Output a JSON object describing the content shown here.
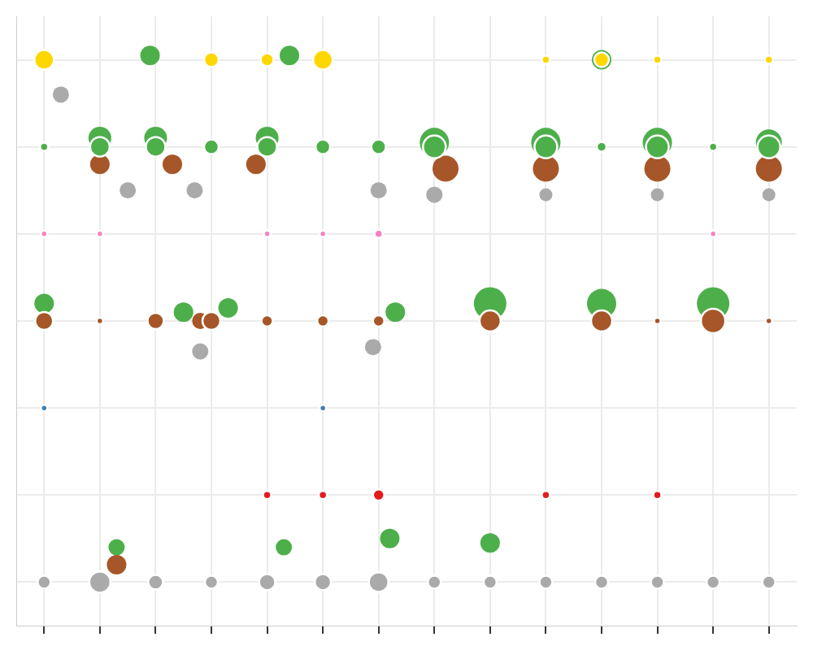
{
  "chart_data": {
    "type": "bubble",
    "xlim": [
      0.5,
      14.5
    ],
    "ylim": [
      0.5,
      7.5
    ],
    "xticks": [
      1,
      2,
      3,
      4,
      5,
      6,
      7,
      8,
      9,
      10,
      11,
      12,
      13,
      14
    ],
    "yticks": [
      1,
      2,
      3,
      4,
      5,
      6,
      7
    ],
    "grid": true,
    "tick_labels": false,
    "series": [
      {
        "color": "#4daf4a",
        "points": [
          {
            "x": 2,
            "y": 6.1,
            "size": 14
          },
          {
            "x": 3,
            "y": 6.1,
            "size": 14
          },
          {
            "x": 5,
            "y": 6.1,
            "size": 14
          },
          {
            "x": 8,
            "y": 6.05,
            "size": 18
          },
          {
            "x": 10,
            "y": 6.05,
            "size": 18
          },
          {
            "x": 12,
            "y": 6.05,
            "size": 18
          },
          {
            "x": 14,
            "y": 6.05,
            "size": 16
          },
          {
            "x": 1,
            "y": 4.2,
            "size": 12
          },
          {
            "x": 3.5,
            "y": 4.1,
            "size": 12
          },
          {
            "x": 4.3,
            "y": 4.15,
            "size": 12
          },
          {
            "x": 7.3,
            "y": 4.1,
            "size": 12
          },
          {
            "x": 9,
            "y": 4.2,
            "size": 20
          },
          {
            "x": 11,
            "y": 4.2,
            "size": 18
          },
          {
            "x": 13,
            "y": 4.2,
            "size": 20
          },
          {
            "x": 2.9,
            "y": 7.05,
            "size": 12
          },
          {
            "x": 5.4,
            "y": 7.05,
            "size": 12
          },
          {
            "x": 11,
            "y": 7.0,
            "size": 12
          },
          {
            "x": 2.3,
            "y": 1.4,
            "size": 10
          },
          {
            "x": 5.3,
            "y": 1.4,
            "size": 10
          },
          {
            "x": 7.2,
            "y": 1.5,
            "size": 12
          },
          {
            "x": 9,
            "y": 1.45,
            "size": 12
          }
        ]
      },
      {
        "color": "#a65628",
        "points": [
          {
            "x": 2,
            "y": 5.8,
            "size": 12
          },
          {
            "x": 3.3,
            "y": 5.8,
            "size": 12
          },
          {
            "x": 4.8,
            "y": 5.8,
            "size": 12
          },
          {
            "x": 8.2,
            "y": 5.75,
            "size": 16
          },
          {
            "x": 10,
            "y": 5.75,
            "size": 16
          },
          {
            "x": 12,
            "y": 5.75,
            "size": 16
          },
          {
            "x": 14,
            "y": 5.75,
            "size": 16
          },
          {
            "x": 3.8,
            "y": 4,
            "size": 10
          },
          {
            "x": 2.3,
            "y": 1.2,
            "size": 12
          }
        ]
      },
      {
        "color": "#aaaaaa",
        "points": [
          {
            "x": 2.5,
            "y": 5.5,
            "size": 10
          },
          {
            "x": 3.7,
            "y": 5.5,
            "size": 10
          },
          {
            "x": 7,
            "y": 5.5,
            "size": 10
          },
          {
            "x": 8,
            "y": 5.45,
            "size": 10
          },
          {
            "x": 10,
            "y": 5.45,
            "size": 8
          },
          {
            "x": 12,
            "y": 5.45,
            "size": 8
          },
          {
            "x": 14,
            "y": 5.45,
            "size": 8
          },
          {
            "x": 3.8,
            "y": 3.65,
            "size": 10
          },
          {
            "x": 6.9,
            "y": 3.7,
            "size": 10
          },
          {
            "x": 1.3,
            "y": 6.6,
            "size": 10
          }
        ]
      },
      {
        "color": "#ffd700",
        "points": [
          {
            "x": 1,
            "y": 7,
            "size": 12
          },
          {
            "x": 4,
            "y": 7,
            "size": 9
          },
          {
            "x": 5,
            "y": 7,
            "size": 8
          },
          {
            "x": 6,
            "y": 7,
            "size": 12
          },
          {
            "x": 10,
            "y": 7,
            "size": 5
          },
          {
            "x": 11,
            "y": 7,
            "size": 9
          },
          {
            "x": 12,
            "y": 7,
            "size": 5
          },
          {
            "x": 14,
            "y": 7,
            "size": 5
          }
        ]
      },
      {
        "color": "#4daf4a",
        "points": [
          {
            "x": 1,
            "y": 6,
            "size": 5
          },
          {
            "x": 2,
            "y": 6,
            "size": 12
          },
          {
            "x": 3,
            "y": 6,
            "size": 12
          },
          {
            "x": 4,
            "y": 6,
            "size": 9
          },
          {
            "x": 5,
            "y": 6,
            "size": 12
          },
          {
            "x": 6,
            "y": 6,
            "size": 9
          },
          {
            "x": 7,
            "y": 6,
            "size": 9
          },
          {
            "x": 8,
            "y": 6,
            "size": 14
          },
          {
            "x": 10,
            "y": 6,
            "size": 14
          },
          {
            "x": 11,
            "y": 6,
            "size": 6
          },
          {
            "x": 12,
            "y": 6,
            "size": 14
          },
          {
            "x": 13,
            "y": 6,
            "size": 5
          },
          {
            "x": 14,
            "y": 6,
            "size": 14
          }
        ]
      },
      {
        "color": "#f781bf",
        "points": [
          {
            "x": 1,
            "y": 5,
            "size": 4
          },
          {
            "x": 2,
            "y": 5,
            "size": 4
          },
          {
            "x": 5,
            "y": 5,
            "size": 4
          },
          {
            "x": 6,
            "y": 5,
            "size": 4
          },
          {
            "x": 7,
            "y": 5,
            "size": 5
          },
          {
            "x": 13,
            "y": 5,
            "size": 4
          }
        ]
      },
      {
        "color": "#a65628",
        "points": [
          {
            "x": 1,
            "y": 4,
            "size": 11
          },
          {
            "x": 2,
            "y": 4,
            "size": 4
          },
          {
            "x": 3,
            "y": 4,
            "size": 10
          },
          {
            "x": 4,
            "y": 4,
            "size": 11
          },
          {
            "x": 5,
            "y": 4,
            "size": 7
          },
          {
            "x": 6,
            "y": 4,
            "size": 7
          },
          {
            "x": 7,
            "y": 4,
            "size": 7
          },
          {
            "x": 9,
            "y": 4,
            "size": 13
          },
          {
            "x": 11,
            "y": 4,
            "size": 13
          },
          {
            "x": 12,
            "y": 4,
            "size": 4
          },
          {
            "x": 13,
            "y": 4,
            "size": 15
          },
          {
            "x": 14,
            "y": 4,
            "size": 4
          }
        ]
      },
      {
        "color": "#377eb8",
        "points": [
          {
            "x": 1,
            "y": 3,
            "size": 4
          },
          {
            "x": 6,
            "y": 3,
            "size": 4
          }
        ]
      },
      {
        "color": "#e41a1c",
        "points": [
          {
            "x": 5,
            "y": 2,
            "size": 5
          },
          {
            "x": 6,
            "y": 2,
            "size": 5
          },
          {
            "x": 7,
            "y": 2,
            "size": 7
          },
          {
            "x": 10,
            "y": 2,
            "size": 5
          },
          {
            "x": 12,
            "y": 2,
            "size": 5
          }
        ]
      },
      {
        "color": "#aaaaaa",
        "points": [
          {
            "x": 1,
            "y": 1,
            "size": 8
          },
          {
            "x": 2,
            "y": 1,
            "size": 13
          },
          {
            "x": 3,
            "y": 1,
            "size": 9
          },
          {
            "x": 4,
            "y": 1,
            "size": 8
          },
          {
            "x": 5,
            "y": 1,
            "size": 10
          },
          {
            "x": 6,
            "y": 1,
            "size": 10
          },
          {
            "x": 7,
            "y": 1,
            "size": 12
          },
          {
            "x": 8,
            "y": 1,
            "size": 8
          },
          {
            "x": 9,
            "y": 1,
            "size": 8
          },
          {
            "x": 10,
            "y": 1,
            "size": 8
          },
          {
            "x": 11,
            "y": 1,
            "size": 8
          },
          {
            "x": 12,
            "y": 1,
            "size": 8
          },
          {
            "x": 13,
            "y": 1,
            "size": 8
          },
          {
            "x": 14,
            "y": 1,
            "size": 8
          }
        ]
      }
    ]
  }
}
